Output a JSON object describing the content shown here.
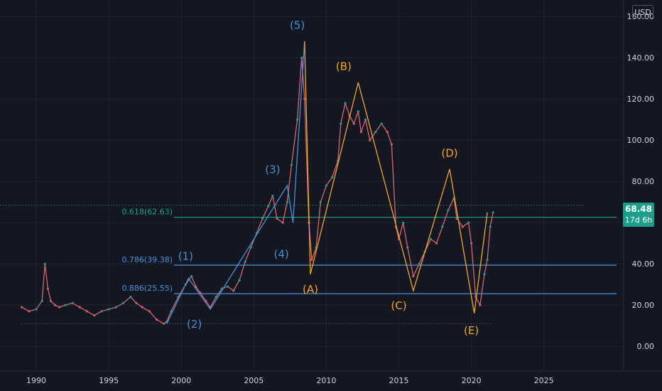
{
  "currency": "USD",
  "last_price": {
    "value": "68.48",
    "countdown": "17d 6h"
  },
  "chart_data": {
    "type": "line",
    "title": "",
    "xlabel": "",
    "ylabel": "",
    "xlim": [
      1987.5,
      2030.5
    ],
    "ylim": [
      -12,
      168
    ],
    "x_ticks": [
      1990,
      1995,
      2000,
      2005,
      2010,
      2015,
      2020,
      2025
    ],
    "x_tick_labels": [
      "1990",
      "1995",
      "2000",
      "2005",
      "2010",
      "2015",
      "2020",
      "2025"
    ],
    "y_ticks": [
      0,
      20,
      40,
      60,
      80,
      100,
      120,
      140,
      160
    ],
    "y_tick_labels": [
      "0.00",
      "20.00",
      "40.00",
      "60.00",
      "80.00",
      "100.00",
      "120.00",
      "140.00",
      "160.00"
    ],
    "grid": true,
    "price_series": {
      "name": "",
      "x": [
        1989.0,
        1989.5,
        1990.0,
        1990.4,
        1990.6,
        1990.8,
        1991.0,
        1991.3,
        1991.6,
        1992.0,
        1992.5,
        1993.0,
        1993.5,
        1994.0,
        1994.5,
        1995.0,
        1995.5,
        1996.0,
        1996.5,
        1996.9,
        1997.3,
        1997.8,
        1998.3,
        1998.8,
        1999.0,
        1999.3,
        1999.8,
        2000.3,
        2000.7,
        2001.0,
        2001.3,
        2001.7,
        2002.0,
        2002.4,
        2002.8,
        2003.2,
        2003.6,
        2004.0,
        2004.4,
        2004.8,
        2005.2,
        2005.6,
        2006.0,
        2006.3,
        2006.6,
        2007.0,
        2007.3,
        2007.6,
        2008.0,
        2008.3,
        2008.5,
        2008.8,
        2009.0,
        2009.3,
        2009.6,
        2010.0,
        2010.4,
        2010.8,
        2011.0,
        2011.3,
        2011.6,
        2011.9,
        2012.2,
        2012.4,
        2012.7,
        2013.0,
        2013.4,
        2013.8,
        2014.2,
        2014.5,
        2014.8,
        2015.0,
        2015.3,
        2015.6,
        2016.0,
        2016.4,
        2016.8,
        2017.2,
        2017.6,
        2018.0,
        2018.4,
        2018.8,
        2019.0,
        2019.4,
        2019.8,
        2020.0,
        2020.3,
        2020.6,
        2020.9,
        2021.1,
        2021.3,
        2021.5
      ],
      "y": [
        19,
        17,
        18,
        22,
        40,
        28,
        22,
        20,
        19,
        20,
        21,
        19,
        17,
        15,
        17,
        18,
        19,
        21,
        24,
        21,
        19,
        17,
        13,
        11,
        12,
        17,
        24,
        30,
        34,
        29,
        26,
        22,
        19,
        24,
        28,
        29,
        27,
        32,
        41,
        48,
        55,
        62,
        68,
        73,
        62,
        60,
        70,
        88,
        110,
        140,
        120,
        60,
        42,
        48,
        70,
        78,
        82,
        90,
        108,
        118,
        112,
        108,
        114,
        104,
        110,
        100,
        104,
        108,
        104,
        98,
        58,
        52,
        60,
        48,
        34,
        40,
        46,
        52,
        50,
        58,
        66,
        72,
        62,
        58,
        60,
        50,
        24,
        20,
        35,
        42,
        58,
        65
      ]
    },
    "wave_lines": [
      {
        "color": "#4a8fd6",
        "points": [
          [
            1999.0,
            11
          ],
          [
            2000.5,
            33
          ],
          [
            2002.0,
            18
          ],
          [
            2007.3,
            78
          ],
          [
            2007.7,
            60
          ],
          [
            2008.5,
            148
          ]
        ]
      },
      {
        "color": "#f5a623",
        "points": [
          [
            2008.5,
            148
          ],
          [
            2008.9,
            35
          ],
          [
            2012.2,
            128
          ],
          [
            2016.0,
            27
          ],
          [
            2018.5,
            86
          ],
          [
            2020.2,
            16
          ],
          [
            2021.1,
            65
          ]
        ]
      }
    ],
    "wave_labels": [
      {
        "text": "(1)",
        "x": 2000.3,
        "y": 42,
        "color": "blue"
      },
      {
        "text": "(2)",
        "x": 2000.9,
        "y": 9,
        "color": "blue"
      },
      {
        "text": "(3)",
        "x": 2006.3,
        "y": 84,
        "color": "blue"
      },
      {
        "text": "(4)",
        "x": 2006.9,
        "y": 43,
        "color": "blue"
      },
      {
        "text": "(5)",
        "x": 2008.0,
        "y": 154,
        "color": "blue"
      },
      {
        "text": "(A)",
        "x": 2008.9,
        "y": 26,
        "color": "orange"
      },
      {
        "text": "(B)",
        "x": 2011.2,
        "y": 134,
        "color": "orange"
      },
      {
        "text": "(C)",
        "x": 2015.0,
        "y": 18,
        "color": "orange"
      },
      {
        "text": "(D)",
        "x": 2018.5,
        "y": 92,
        "color": "orange"
      },
      {
        "text": "(E)",
        "x": 2020.0,
        "y": 6,
        "color": "orange"
      }
    ],
    "fib_levels": [
      {
        "label": "0.618(62.63)",
        "value": 62.63,
        "color": "#1e9e8a",
        "x_start": 1999.5
      },
      {
        "label": "0.786(39.38)",
        "value": 39.38,
        "color": "#4a8fd6",
        "x_start": 1999.5
      },
      {
        "label": "0.886(25.55)",
        "value": 25.55,
        "color": "#4a8fd6",
        "x_start": 1999.5
      }
    ],
    "reference_lines": [
      {
        "value": 11,
        "color": "#a05a5a",
        "style": "dotted",
        "x_start": 1989.0,
        "x_end": 2021.5
      },
      {
        "value": 68.48,
        "color": "#1e9e8a",
        "style": "dotted",
        "x_start": 1987.5,
        "x_end": 2027.8
      }
    ]
  }
}
